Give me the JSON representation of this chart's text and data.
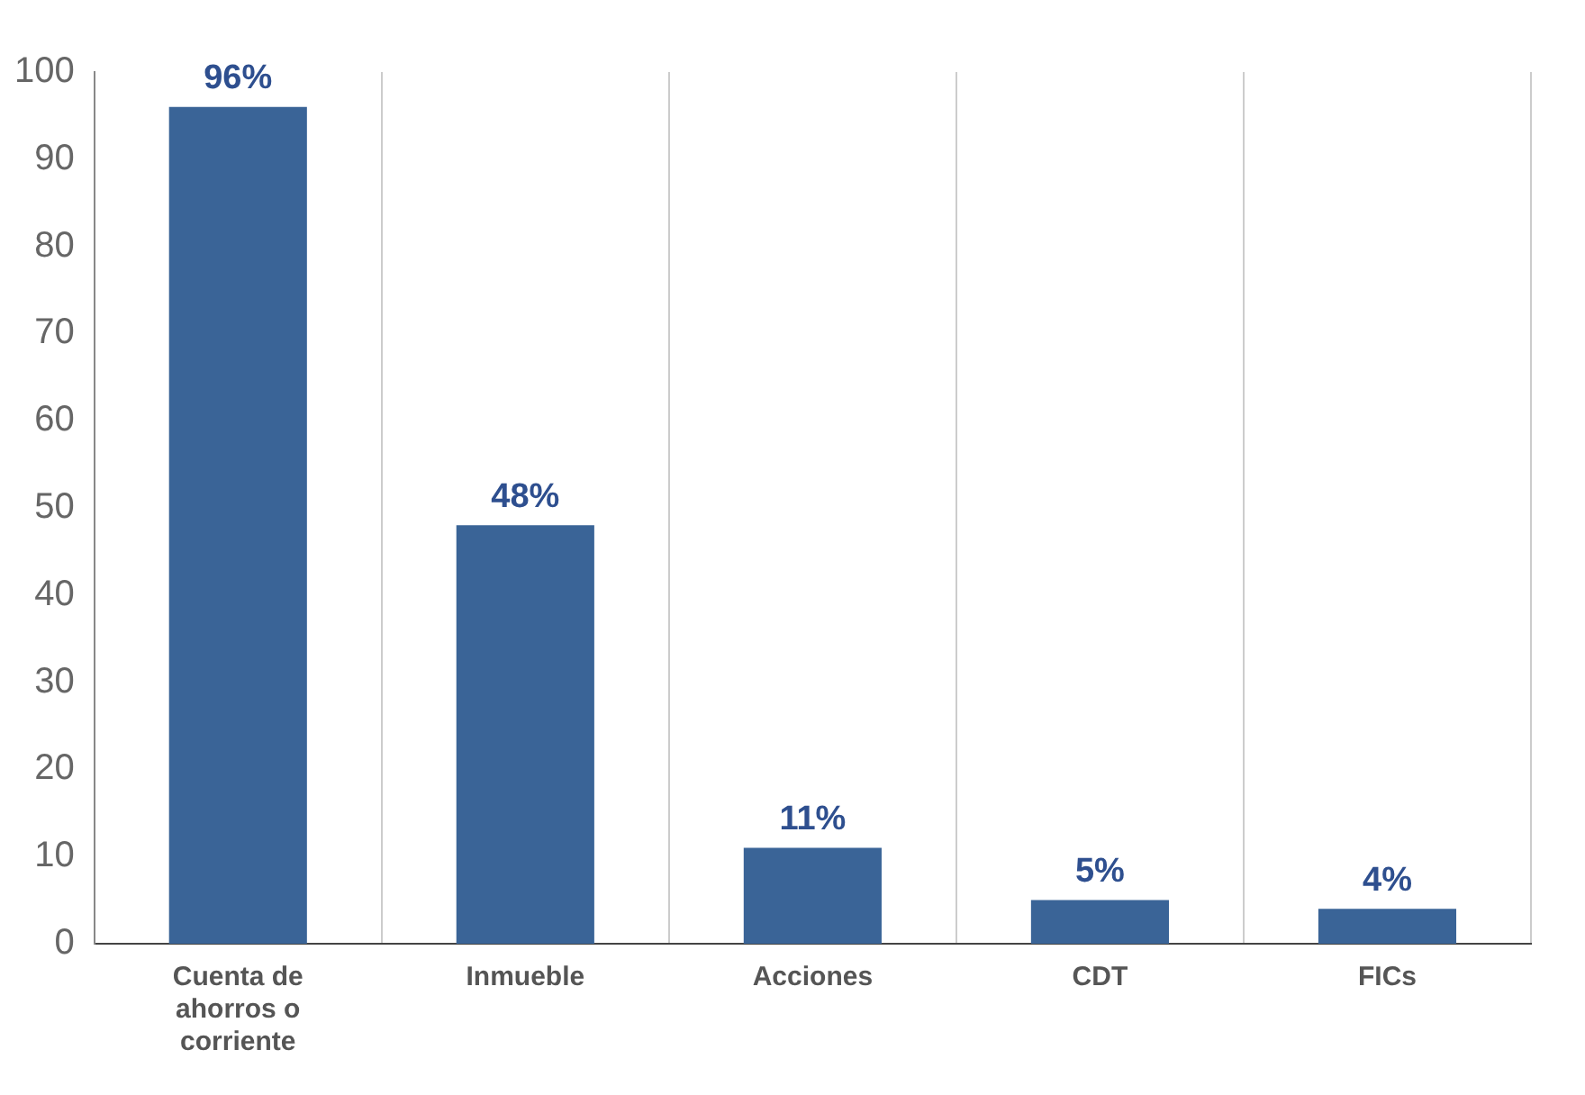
{
  "chart_data": {
    "type": "bar",
    "categories": [
      "Cuenta de ahorros o corriente",
      "Inmueble",
      "Acciones",
      "CDT",
      "FICs"
    ],
    "values": [
      96,
      48,
      11,
      5,
      4
    ],
    "value_labels": [
      "96%",
      "48%",
      "11%",
      "5%",
      "4%"
    ],
    "color": "#3a6497",
    "ylim": [
      0,
      100
    ],
    "yticks": [
      0,
      10,
      20,
      30,
      40,
      50,
      60,
      70,
      80,
      90,
      100
    ],
    "grid": "x",
    "legend": false
  }
}
